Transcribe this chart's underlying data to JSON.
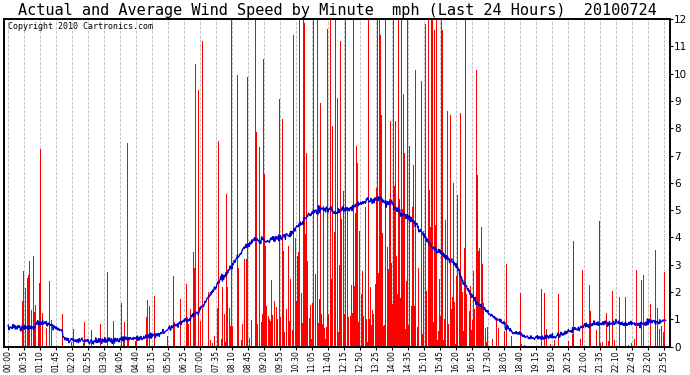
{
  "title": "Actual and Average Wind Speed by Minute  mph (Last 24 Hours)  20100724",
  "copyright": "Copyright 2010 Cartronics.com",
  "yticks": [
    0.0,
    1.0,
    2.0,
    3.0,
    4.0,
    5.0,
    6.0,
    7.0,
    8.0,
    9.0,
    10.0,
    11.0,
    12.0
  ],
  "ylim": [
    0,
    12.0
  ],
  "bar_color": "#FF0000",
  "line_color": "#0000CC",
  "background_color": "#FFFFFF",
  "grid_color": "#BBBBBB",
  "title_fontsize": 11,
  "copyright_fontsize": 6,
  "tick_fontsize": 5.5,
  "n_minutes": 1440,
  "tick_step": 35
}
